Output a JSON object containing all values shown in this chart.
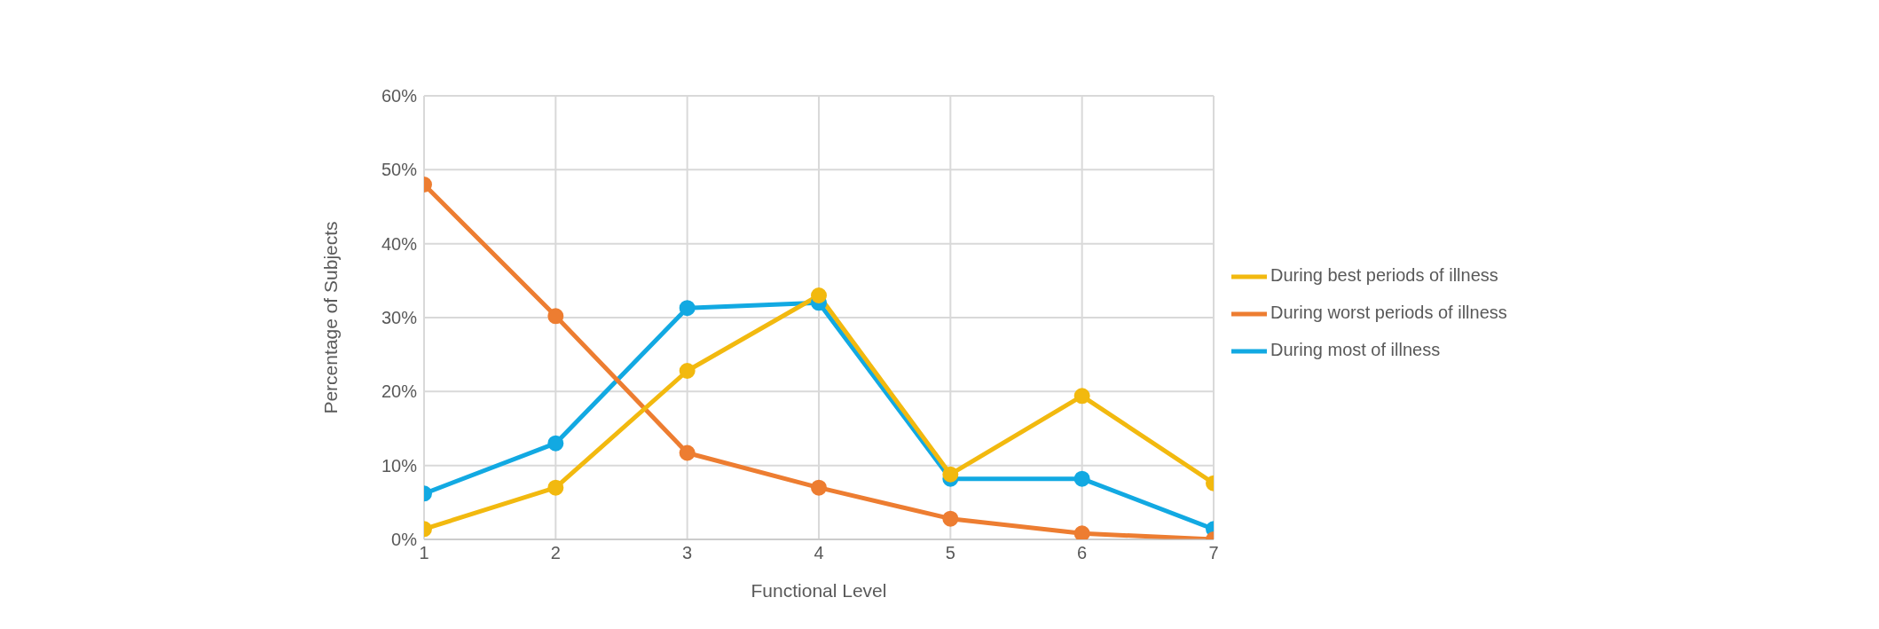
{
  "chart_data": {
    "type": "line",
    "xlabel": "Functional Level",
    "ylabel": "Percentage of Subjects",
    "x": [
      1,
      2,
      3,
      4,
      5,
      6,
      7
    ],
    "series": [
      {
        "name": "During best periods of illness",
        "color": "#f2b90f",
        "values": [
          1.4,
          7,
          22.8,
          33,
          8.8,
          19.4,
          7.6
        ]
      },
      {
        "name": "During worst periods of illness",
        "color": "#ed7d31",
        "values": [
          48,
          30.2,
          11.7,
          7,
          2.8,
          0.8,
          0
        ]
      },
      {
        "name": "During most of illness",
        "color": "#12a9e2",
        "values": [
          6.2,
          13,
          31.3,
          32,
          8.2,
          8.2,
          1.4
        ]
      }
    ],
    "xlim": [
      1,
      7
    ],
    "xticks": [
      1,
      2,
      3,
      4,
      5,
      6,
      7
    ],
    "ylim": [
      0,
      60
    ],
    "yticks": [
      {
        "value": 0,
        "label": "0%"
      },
      {
        "value": 10,
        "label": "10%"
      },
      {
        "value": 20,
        "label": "20%"
      },
      {
        "value": 30,
        "label": "30%"
      },
      {
        "value": 40,
        "label": "40%"
      },
      {
        "value": 50,
        "label": "50%"
      },
      {
        "value": 60,
        "label": "60%"
      }
    ],
    "grid": true,
    "legend": "right",
    "marker": "circle",
    "line_style": "solid"
  }
}
